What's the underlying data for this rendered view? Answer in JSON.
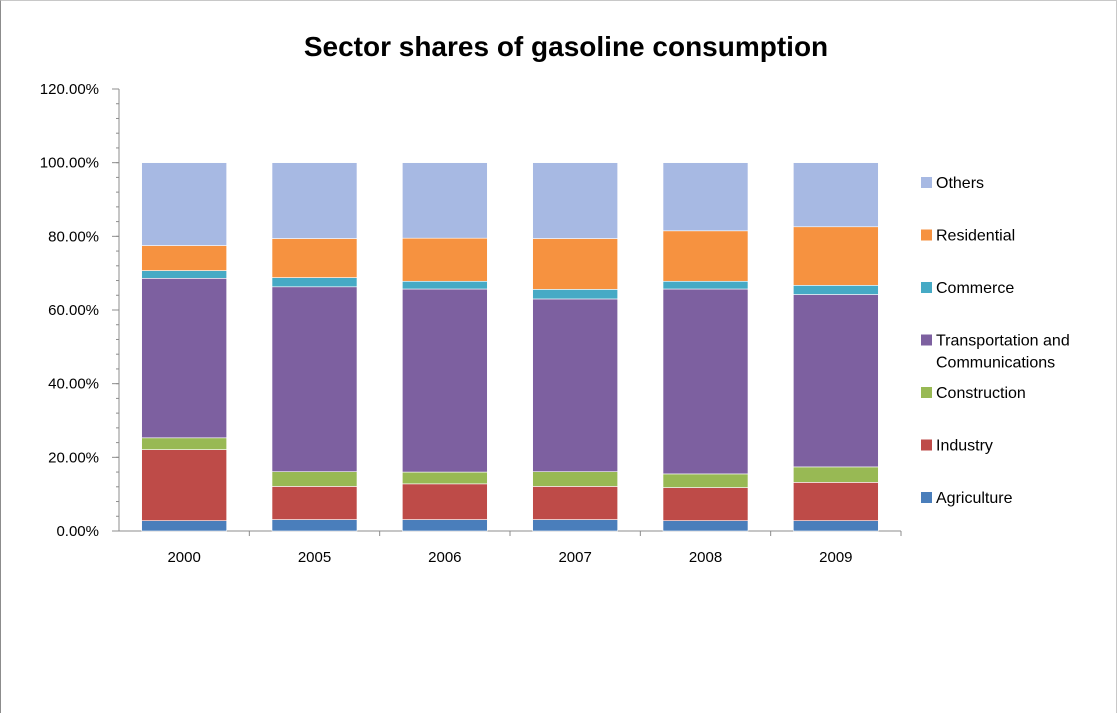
{
  "chart_data": {
    "type": "bar",
    "stacked": true,
    "title": "Sector shares of gasoline consumption",
    "xlabel": "",
    "ylabel": "",
    "categories": [
      "2000",
      "2005",
      "2006",
      "2007",
      "2008",
      "2009"
    ],
    "ylim": [
      0,
      1.2
    ],
    "ytick_values": [
      0,
      0.2,
      0.4,
      0.6,
      0.8,
      1.0,
      1.2
    ],
    "ytick_labels": [
      "0.00%",
      "20.00%",
      "40.00%",
      "60.00%",
      "80.00%",
      "100.00%",
      "120.00%"
    ],
    "legend_position": "right",
    "grid": false,
    "series": [
      {
        "name": "Agriculture",
        "color": "#4a7ebb",
        "values": [
          0.028,
          0.031,
          0.031,
          0.031,
          0.028,
          0.028
        ]
      },
      {
        "name": "Industry",
        "color": "#be4b48",
        "values": [
          0.193,
          0.09,
          0.097,
          0.09,
          0.09,
          0.104
        ]
      },
      {
        "name": "Construction",
        "color": "#98b954",
        "values": [
          0.032,
          0.04,
          0.032,
          0.04,
          0.037,
          0.042
        ]
      },
      {
        "name": "Transportation and Communications",
        "color": "#7d60a0",
        "values": [
          0.433,
          0.502,
          0.497,
          0.469,
          0.502,
          0.468
        ]
      },
      {
        "name": "Commerce",
        "color": "#46aac5",
        "values": [
          0.021,
          0.025,
          0.021,
          0.026,
          0.021,
          0.025
        ]
      },
      {
        "name": "Residential",
        "color": "#f69240",
        "values": [
          0.068,
          0.106,
          0.117,
          0.138,
          0.137,
          0.159
        ]
      },
      {
        "name": "Others",
        "color": "#a7b9e3",
        "values": [
          0.225,
          0.206,
          0.205,
          0.206,
          0.185,
          0.174
        ]
      }
    ]
  }
}
